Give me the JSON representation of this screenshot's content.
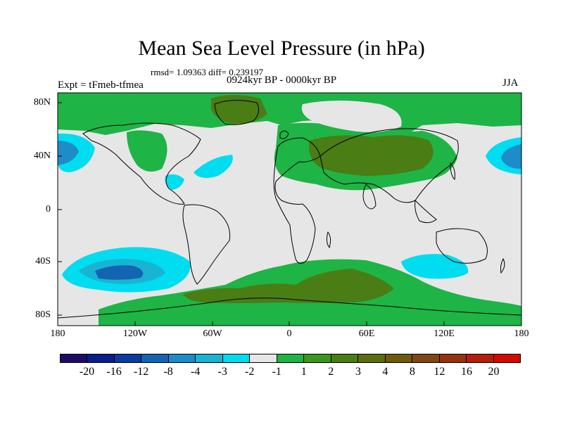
{
  "header": {
    "title": "Mean Sea Level Pressure (in hPa)",
    "stats": "rmsd= 1.09363 diff= 0.239197",
    "period": "0924kyr BP - 0000kyr BP",
    "experiment": "Expt = tFmeb-tfmea",
    "season": "JJA"
  },
  "axes": {
    "lat_labels": [
      "80N",
      "40N",
      "0",
      "40S",
      "80S"
    ],
    "lon_labels": [
      "180",
      "120W",
      "60W",
      "0",
      "60E",
      "120E",
      "180"
    ]
  },
  "colors": {
    "ocean_land_fill": "#e6e6e6",
    "coast": "#000000"
  },
  "colorbar": {
    "swatches": [
      "#1e0c64",
      "#0a1e8c",
      "#0a3ca0",
      "#1464b4",
      "#1e8cc8",
      "#19b4d2",
      "#00dcf0",
      "#e6e6e6",
      "#1eb446",
      "#3c961e",
      "#4a7d14",
      "#5a6e10",
      "#6e5a0a",
      "#824614",
      "#96320f",
      "#b41e0a",
      "#d20a00"
    ],
    "labels": [
      "-20",
      "-16",
      "-12",
      "-8",
      "-4",
      "-3",
      "-2",
      "-1",
      "1",
      "2",
      "3",
      "4",
      "8",
      "12",
      "16",
      "20"
    ]
  }
}
